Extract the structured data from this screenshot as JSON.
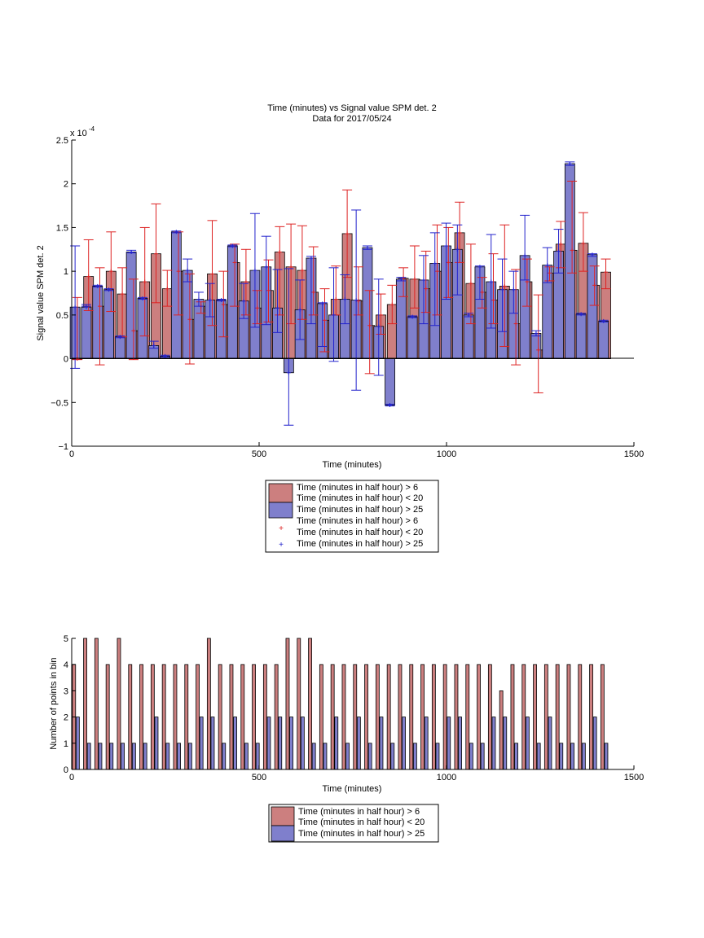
{
  "chart_data": [
    {
      "type": "bar",
      "title": "Time (minutes) vs Signal value SPM det. 2",
      "subtitle": "Data for 2017/05/24",
      "xlabel": "Time (minutes)",
      "ylabel": "Signal value SPM det. 2",
      "y_exponent_label": "x 10",
      "y_exponent_power": "-4",
      "xlim": [
        0,
        1500
      ],
      "ylim": [
        -1,
        2.5
      ],
      "xticks": [
        "0",
        "500",
        "1000",
        "1500"
      ],
      "yticks": [
        "−1",
        "−0.5",
        "0",
        "0.5",
        "1",
        "1.5",
        "2",
        "2.5"
      ],
      "grid": false,
      "legend_position": "below",
      "legend": [
        "Time (minutes in half hour) > 6",
        "Time (minutes in half hour) < 20",
        "Time (minutes in half hour) > 25",
        "Time (minutes in half hour) > 6",
        "Time (minutes in half hour) < 20",
        "Time (minutes in half hour) > 25"
      ],
      "colors": {
        "red_bar": "#cc7f7f",
        "blue_bar": "#7f7fcc",
        "red_err": "#dd2222",
        "blue_err": "#2222cc"
      },
      "series": [
        {
          "label_index": [
            0,
            1
          ],
          "color": "#cc7f7f",
          "x": [
            15,
            45,
            75,
            105,
            135,
            165,
            195,
            225,
            255,
            285,
            315,
            345,
            375,
            405,
            435,
            465,
            495,
            525,
            555,
            585,
            615,
            645,
            675,
            705,
            735,
            765,
            795,
            825,
            855,
            885,
            915,
            945,
            975,
            1005,
            1035,
            1065,
            1095,
            1125,
            1155,
            1185,
            1215,
            1245,
            1275,
            1305,
            1335,
            1365,
            1395,
            1425
          ],
          "values": [
            0,
            0.94,
            0.6,
            1.0,
            0.74,
            0.32,
            0.88,
            1.2,
            0.8,
            1.0,
            0.45,
            0.6,
            0.97,
            0.62,
            1.1,
            0.88,
            0.58,
            0.78,
            1.22,
            1.05,
            1.01,
            0.76,
            0.44,
            0.68,
            1.43,
            0.66,
            0.38,
            0.5,
            0.62,
            0.92,
            0.91,
            0.8,
            1.0,
            1.1,
            1.44,
            0.86,
            0.76,
            0.67,
            0.83,
            0.4,
            0.88,
            0.1,
            0.98,
            1.31,
            1.24,
            1.32,
            0.84,
            0.99
          ],
          "err_low": [
            -0.01,
            0.55,
            -0.07,
            0.54,
            0.25,
            -0.01,
            0.26,
            0.64,
            0.6,
            0.5,
            -0.06,
            0.52,
            0.38,
            0.25,
            0.6,
            0.5,
            0.4,
            0.42,
            0.5,
            0.4,
            0.45,
            0.5,
            0.08,
            0.5,
            0.93,
            0.5,
            -0.17,
            0.28,
            0.4,
            0.71,
            0.58,
            0.53,
            0.5,
            0.7,
            1.1,
            0.4,
            0.58,
            0.4,
            0.14,
            -0.07,
            0.6,
            -0.39,
            0.89,
            1.04,
            0.98,
            1.0,
            0.61,
            0.8
          ],
          "err_high": [
            0.7,
            1.36,
            1.04,
            1.45,
            1.04,
            0.91,
            1.5,
            1.77,
            1.01,
            1.45,
            0.97,
            0.65,
            1.58,
            1.0,
            1.31,
            1.25,
            0.78,
            1.13,
            1.51,
            1.54,
            1.52,
            1.28,
            0.8,
            1.06,
            1.93,
            1.05,
            0.78,
            0.74,
            0.84,
            1.04,
            1.29,
            1.23,
            1.53,
            1.5,
            1.79,
            1.31,
            0.93,
            1.2,
            1.53,
            1.02,
            1.14,
            0.73,
            1.05,
            1.57,
            2.03,
            1.67,
            1.06,
            1.14
          ]
        },
        {
          "label_index": [
            2
          ],
          "color": "#7f7fcc",
          "x": [
            9,
            39,
            69,
            99,
            129,
            159,
            189,
            219,
            249,
            279,
            309,
            339,
            369,
            399,
            429,
            459,
            489,
            519,
            549,
            579,
            609,
            639,
            669,
            699,
            729,
            759,
            789,
            819,
            849,
            879,
            909,
            939,
            969,
            999,
            1029,
            1059,
            1089,
            1119,
            1149,
            1179,
            1209,
            1239,
            1269,
            1299,
            1329,
            1359,
            1389,
            1419
          ],
          "values": [
            0.59,
            0.59,
            0.83,
            0.79,
            0.25,
            1.22,
            0.69,
            0.15,
            0.03,
            1.45,
            1.01,
            0.68,
            0.67,
            0.67,
            1.29,
            0.66,
            1.01,
            1.05,
            0.58,
            -0.16,
            0.56,
            1.15,
            0.63,
            0.5,
            0.68,
            0.67,
            1.27,
            0.37,
            -0.53,
            0.91,
            0.48,
            0.9,
            1.09,
            1.29,
            1.25,
            0.5,
            1.05,
            0.88,
            0.79,
            0.79,
            1.18,
            0.29,
            1.07,
            1.23,
            2.23,
            0.51,
            1.19,
            0.43
          ],
          "err_low": [
            -0.11,
            0.6,
            0.82,
            0.78,
            0.24,
            1.21,
            0.68,
            0.12,
            0.02,
            1.44,
            0.88,
            0.6,
            0.48,
            0.66,
            1.28,
            0.46,
            0.36,
            0.39,
            0.3,
            -0.76,
            0.22,
            0.4,
            0.14,
            -0.03,
            0.4,
            -0.36,
            1.25,
            -0.19,
            -0.54,
            0.89,
            0.47,
            0.4,
            0.38,
            0.68,
            0.73,
            0.48,
            0.68,
            0.35,
            0.31,
            0.52,
            0.9,
            0.26,
            0.87,
            0.98,
            2.21,
            0.5,
            1.17,
            0.42
          ],
          "err_high": [
            1.29,
            0.62,
            0.84,
            0.8,
            0.26,
            1.24,
            0.7,
            0.2,
            0.04,
            1.46,
            1.14,
            0.76,
            0.86,
            0.68,
            1.3,
            0.86,
            1.66,
            1.4,
            1.02,
            1.03,
            0.9,
            1.17,
            0.64,
            1.04,
            0.96,
            1.7,
            1.29,
            0.91,
            -0.52,
            0.93,
            0.49,
            1.18,
            1.44,
            1.55,
            1.53,
            0.52,
            1.06,
            1.42,
            1.14,
            1.0,
            1.64,
            0.32,
            1.27,
            1.48,
            2.25,
            0.52,
            1.2,
            0.44
          ]
        }
      ]
    },
    {
      "type": "bar",
      "xlabel": "Time (minutes)",
      "ylabel": "Number of points in bin",
      "xlim": [
        0,
        1500
      ],
      "ylim": [
        0,
        5
      ],
      "xticks": [
        "0",
        "500",
        "1000",
        "1500"
      ],
      "yticks": [
        "0",
        "1",
        "2",
        "3",
        "4",
        "5"
      ],
      "grid": false,
      "legend_position": "below",
      "legend": [
        "Time (minutes in half hour) > 6",
        "Time (minutes in half hour) < 20",
        "Time (minutes in half hour) > 25"
      ],
      "series": [
        {
          "label_index": [
            0,
            1
          ],
          "color": "#cc7f7f",
          "x": [
            6,
            36,
            66,
            96,
            126,
            156,
            186,
            216,
            246,
            276,
            306,
            336,
            366,
            396,
            426,
            456,
            486,
            516,
            546,
            576,
            606,
            636,
            666,
            696,
            726,
            756,
            786,
            816,
            846,
            876,
            906,
            936,
            966,
            996,
            1026,
            1056,
            1086,
            1116,
            1146,
            1176,
            1206,
            1236,
            1266,
            1296,
            1326,
            1356,
            1386,
            1416
          ],
          "values": [
            4,
            5,
            5,
            4,
            5,
            4,
            4,
            4,
            4,
            4,
            4,
            4,
            5,
            4,
            4,
            4,
            4,
            4,
            4,
            5,
            5,
            5,
            4,
            4,
            4,
            4,
            4,
            4,
            4,
            4,
            4,
            4,
            4,
            4,
            4,
            4,
            4,
            4,
            3,
            4,
            4,
            4,
            4,
            4,
            4,
            4,
            4,
            4
          ]
        },
        {
          "label_index": [
            2
          ],
          "color": "#7f7fcc",
          "x": [
            16,
            46,
            76,
            106,
            136,
            166,
            196,
            226,
            256,
            286,
            316,
            346,
            376,
            406,
            436,
            466,
            496,
            526,
            556,
            586,
            616,
            646,
            676,
            706,
            736,
            766,
            796,
            826,
            856,
            886,
            916,
            946,
            976,
            1006,
            1036,
            1066,
            1096,
            1126,
            1156,
            1186,
            1216,
            1246,
            1276,
            1306,
            1336,
            1366,
            1396,
            1426
          ],
          "values": [
            2,
            1,
            1,
            1,
            1,
            1,
            1,
            2,
            1,
            1,
            1,
            2,
            2,
            1,
            2,
            1,
            1,
            2,
            2,
            2,
            2,
            1,
            1,
            2,
            1,
            2,
            1,
            2,
            1,
            2,
            1,
            2,
            1,
            2,
            2,
            1,
            1,
            2,
            2,
            1,
            2,
            1,
            2,
            1,
            1,
            1,
            2,
            1
          ]
        }
      ]
    }
  ]
}
